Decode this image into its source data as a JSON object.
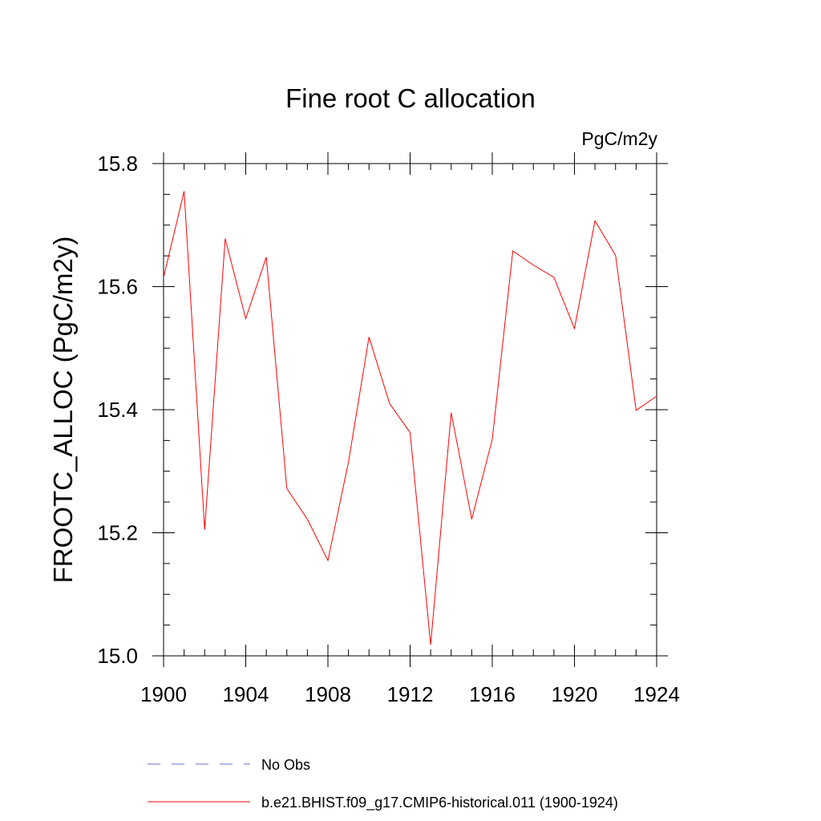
{
  "chart_data": {
    "type": "line",
    "title": "Fine root C allocation",
    "units": "PgC/m2y",
    "ylabel": "FROOTC_ALLOC  (PgC/m2y)",
    "xlabel": "",
    "xlim": [
      1900,
      1924
    ],
    "ylim": [
      15.0,
      15.8
    ],
    "x_ticks": [
      1900,
      1904,
      1908,
      1912,
      1916,
      1920,
      1924
    ],
    "x_tick_labels": [
      "1900",
      "1904",
      "1908",
      "1912",
      "1916",
      "1920",
      "1924"
    ],
    "y_ticks": [
      15.0,
      15.2,
      15.4,
      15.6,
      15.8
    ],
    "y_tick_labels": [
      "15.0",
      "15.2",
      "15.4",
      "15.6",
      "15.8"
    ],
    "x_minor_step": 1,
    "y_minor_step": 0.05,
    "grid": false,
    "legend_position": "bottom",
    "series": [
      {
        "name": "b.e21.BHIST.f09_g17.CMIP6-historical.011 (1900-1924)",
        "color": "#ff0000",
        "style": "solid",
        "x": [
          1900,
          1901,
          1902,
          1903,
          1904,
          1905,
          1906,
          1907,
          1908,
          1909,
          1910,
          1911,
          1912,
          1913,
          1914,
          1915,
          1916,
          1917,
          1918,
          1919,
          1920,
          1921,
          1922,
          1923,
          1924
        ],
        "values": [
          15.615,
          15.755,
          15.205,
          15.678,
          15.548,
          15.648,
          15.272,
          15.222,
          15.155,
          15.315,
          15.518,
          15.41,
          15.363,
          15.018,
          15.395,
          15.222,
          15.352,
          15.658,
          15.635,
          15.615,
          15.532,
          15.707,
          15.651,
          15.399,
          15.422
        ]
      }
    ],
    "legend": [
      {
        "label": "No Obs",
        "color": "#6a6ad0",
        "style": "dashed"
      },
      {
        "label": "b.e21.BHIST.f09_g17.CMIP6-historical.011 (1900-1924)",
        "color": "#ff0000",
        "style": "solid"
      }
    ]
  }
}
